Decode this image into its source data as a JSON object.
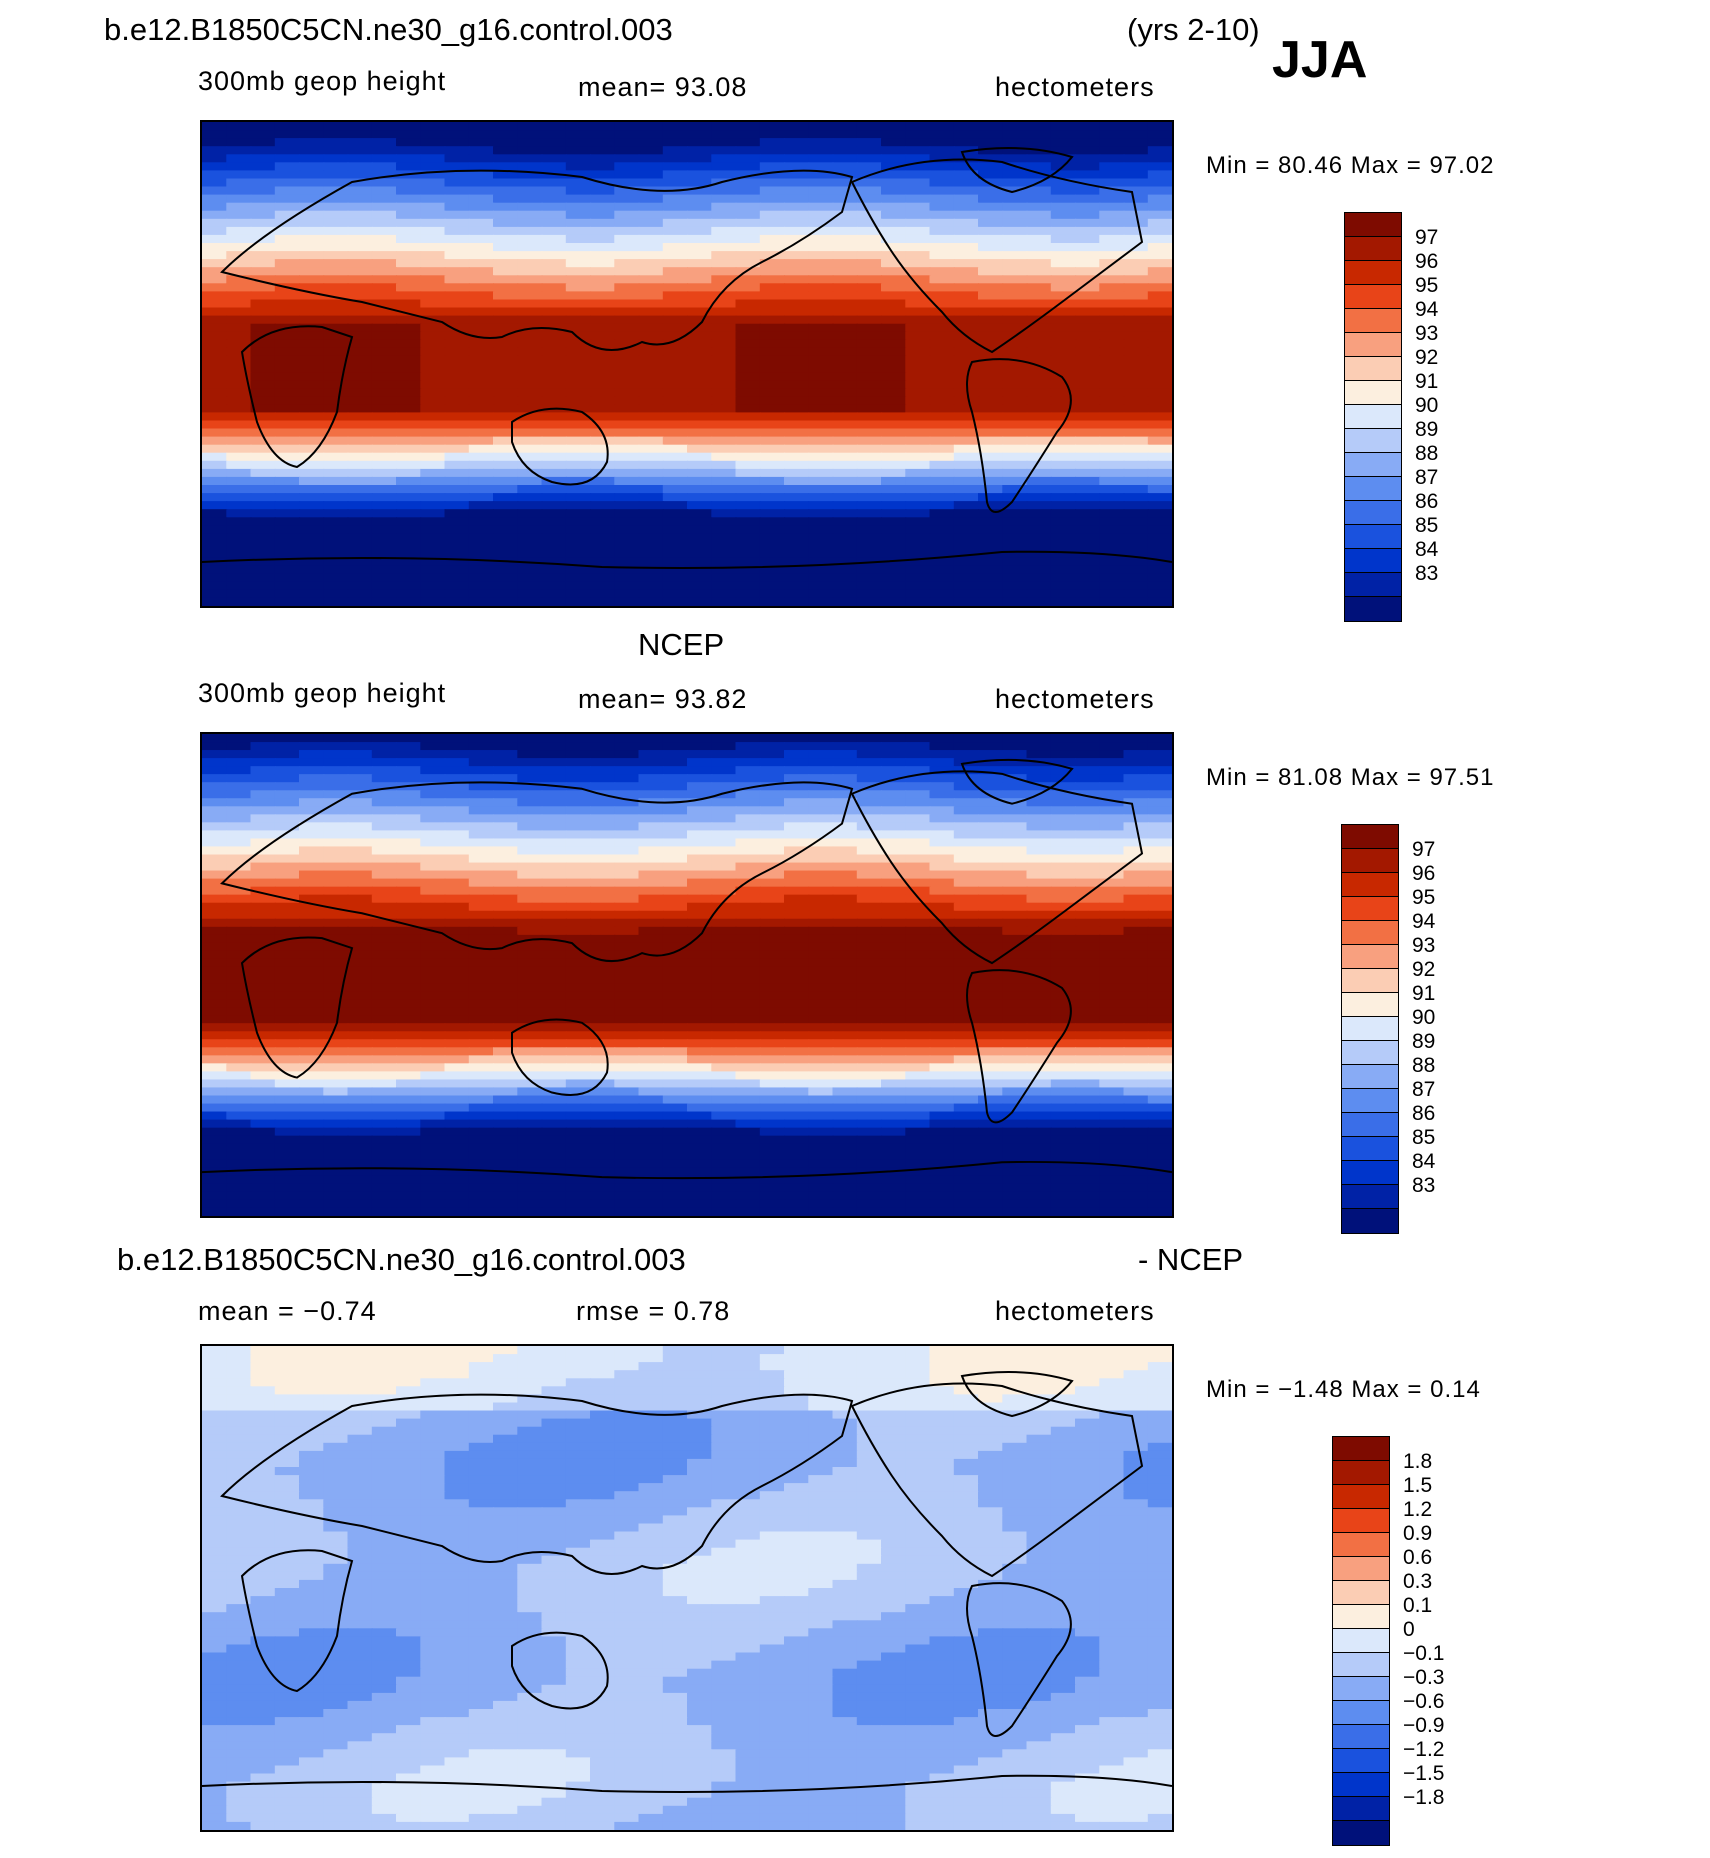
{
  "season": "JJA",
  "case_name": "b.e12.B1850C5CN.ne30_g16.control.003",
  "years": "(yrs 2-10)",
  "obs_name": "NCEP",
  "diff_suffix": "- NCEP",
  "colors": {
    "abs_scale": [
      "#00117a",
      "#0022a6",
      "#0035cb",
      "#1a52de",
      "#3a6ee8",
      "#5d8df0",
      "#88abf5",
      "#b5cbf9",
      "#dbe8fb",
      "#fcefdf",
      "#fbcdb4",
      "#f8a07f",
      "#f27044",
      "#e84418",
      "#c82800",
      "#a31800",
      "#7e0b00"
    ],
    "diff_scale": [
      "#00117a",
      "#0022a6",
      "#0035cb",
      "#1a52de",
      "#3a6ee8",
      "#5d8df0",
      "#88abf5",
      "#b5cbf9",
      "#dbe8fb",
      "#fcefdf",
      "#fbcdb4",
      "#f8a07f",
      "#f27044",
      "#e84418",
      "#c82800",
      "#a31800",
      "#7e0b00"
    ]
  },
  "panels": [
    {
      "title": "b.e12.B1850C5CN.ne30_g16.control.003",
      "variable": "300mb geop height",
      "stat_text": "mean=   93.08",
      "units": "hectometers",
      "min_max": "Min =   80.46  Max =   97.02",
      "min": 80.46,
      "max": 97.02,
      "mean": 93.08,
      "colorbar_labels": [
        "97",
        "96",
        "95",
        "94",
        "93",
        "92",
        "91",
        "90",
        "89",
        "88",
        "87",
        "86",
        "85",
        "84",
        "83"
      ]
    },
    {
      "title": "NCEP",
      "variable": "300mb geop height",
      "stat_text": "mean=   93.82",
      "units": "hectometers",
      "min_max": "Min =   81.08  Max =   97.51",
      "min": 81.08,
      "max": 97.51,
      "mean": 93.82,
      "colorbar_labels": [
        "97",
        "96",
        "95",
        "94",
        "93",
        "92",
        "91",
        "90",
        "89",
        "88",
        "87",
        "86",
        "85",
        "84",
        "83"
      ]
    },
    {
      "title": "b.e12.B1850C5CN.ne30_g16.control.003",
      "variable": "",
      "stat_text": "mean =   −0.74",
      "rmse_text": "rmse =    0.78",
      "units": "hectometers",
      "min_max": "Min =   −1.48  Max =    0.14",
      "min": -1.48,
      "max": 0.14,
      "mean": -0.74,
      "rmse": 0.78,
      "colorbar_labels": [
        "1.8",
        "1.5",
        "1.2",
        "0.9",
        "0.6",
        "0.3",
        "0.1",
        "0",
        "−0.1",
        "−0.3",
        "−0.6",
        "−0.9",
        "−1.2",
        "−1.5",
        "−1.8"
      ]
    }
  ]
}
